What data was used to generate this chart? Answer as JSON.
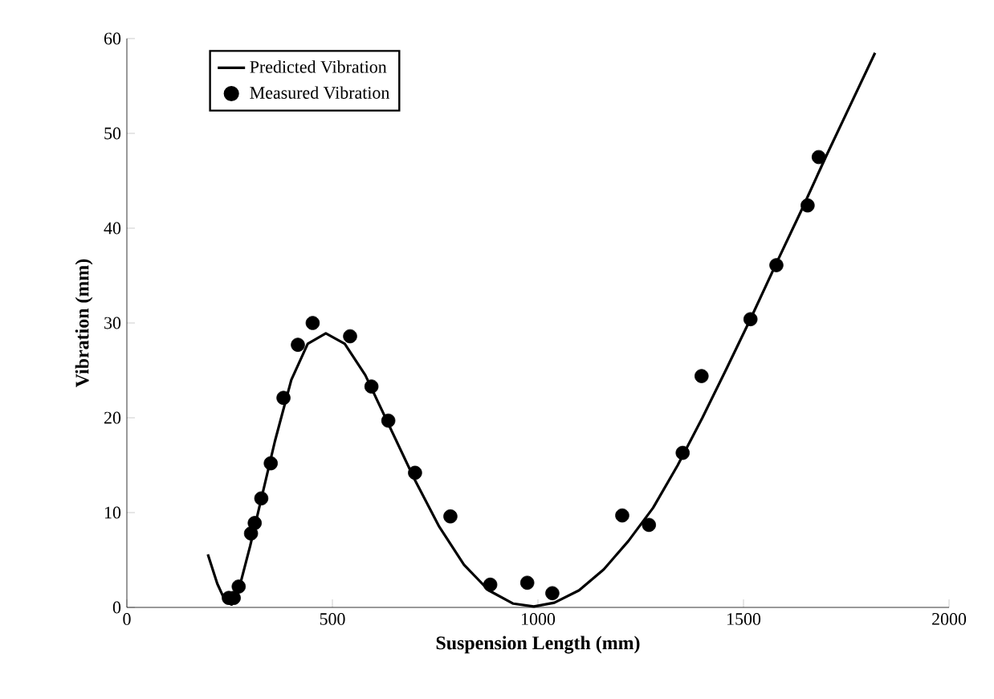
{
  "chart_data": {
    "type": "scatter",
    "xlabel": "Suspension Length (mm)",
    "ylabel": "Vibration (mm)",
    "xlim": [
      0,
      2000
    ],
    "ylim": [
      0,
      60
    ],
    "xticks": [
      0,
      500,
      1000,
      1500,
      2000
    ],
    "yticks": [
      0,
      10,
      20,
      30,
      40,
      50,
      60
    ],
    "grid": false,
    "legend": "top left",
    "series": [
      {
        "name": "Predicted Vibration",
        "type": "line",
        "color": "#000000",
        "marker": "none",
        "line_style": "solid",
        "x": [
          197,
          220,
          240,
          255,
          270,
          300,
          330,
          360,
          400,
          440,
          484,
          530,
          580,
          640,
          700,
          760,
          820,
          880,
          940,
          990,
          1040,
          1100,
          1160,
          1220,
          1280,
          1340,
          1400,
          1460,
          1520,
          1580,
          1640,
          1700,
          1760,
          1820
        ],
        "values": [
          5.6,
          2.5,
          0.6,
          0.3,
          1.5,
          6.5,
          12,
          17.5,
          24,
          27.8,
          28.9,
          27.8,
          24.5,
          19,
          13.5,
          8.5,
          4.5,
          1.8,
          0.4,
          0.1,
          0.5,
          1.8,
          4,
          7,
          10.5,
          15,
          20,
          25.3,
          30.7,
          36.3,
          41.8,
          47.5,
          53,
          58.5
        ]
      },
      {
        "name": "Measured Vibration",
        "color": "#000000",
        "marker": "circle",
        "x": [
          248,
          260,
          272,
          302,
          311,
          327,
          350,
          381,
          416,
          452,
          543,
          595,
          636,
          701,
          787,
          884,
          974,
          1035,
          1205,
          1270,
          1352,
          1398,
          1517,
          1580,
          1656,
          1683
        ],
        "values": [
          1,
          1,
          2.2,
          7.8,
          8.9,
          11.5,
          15.2,
          22.1,
          27.7,
          30,
          28.6,
          23.3,
          19.7,
          14.2,
          9.6,
          2.4,
          2.6,
          1.5,
          9.7,
          8.7,
          16.3,
          24.4,
          30.4,
          36.1,
          42.4,
          47.5
        ]
      }
    ]
  }
}
